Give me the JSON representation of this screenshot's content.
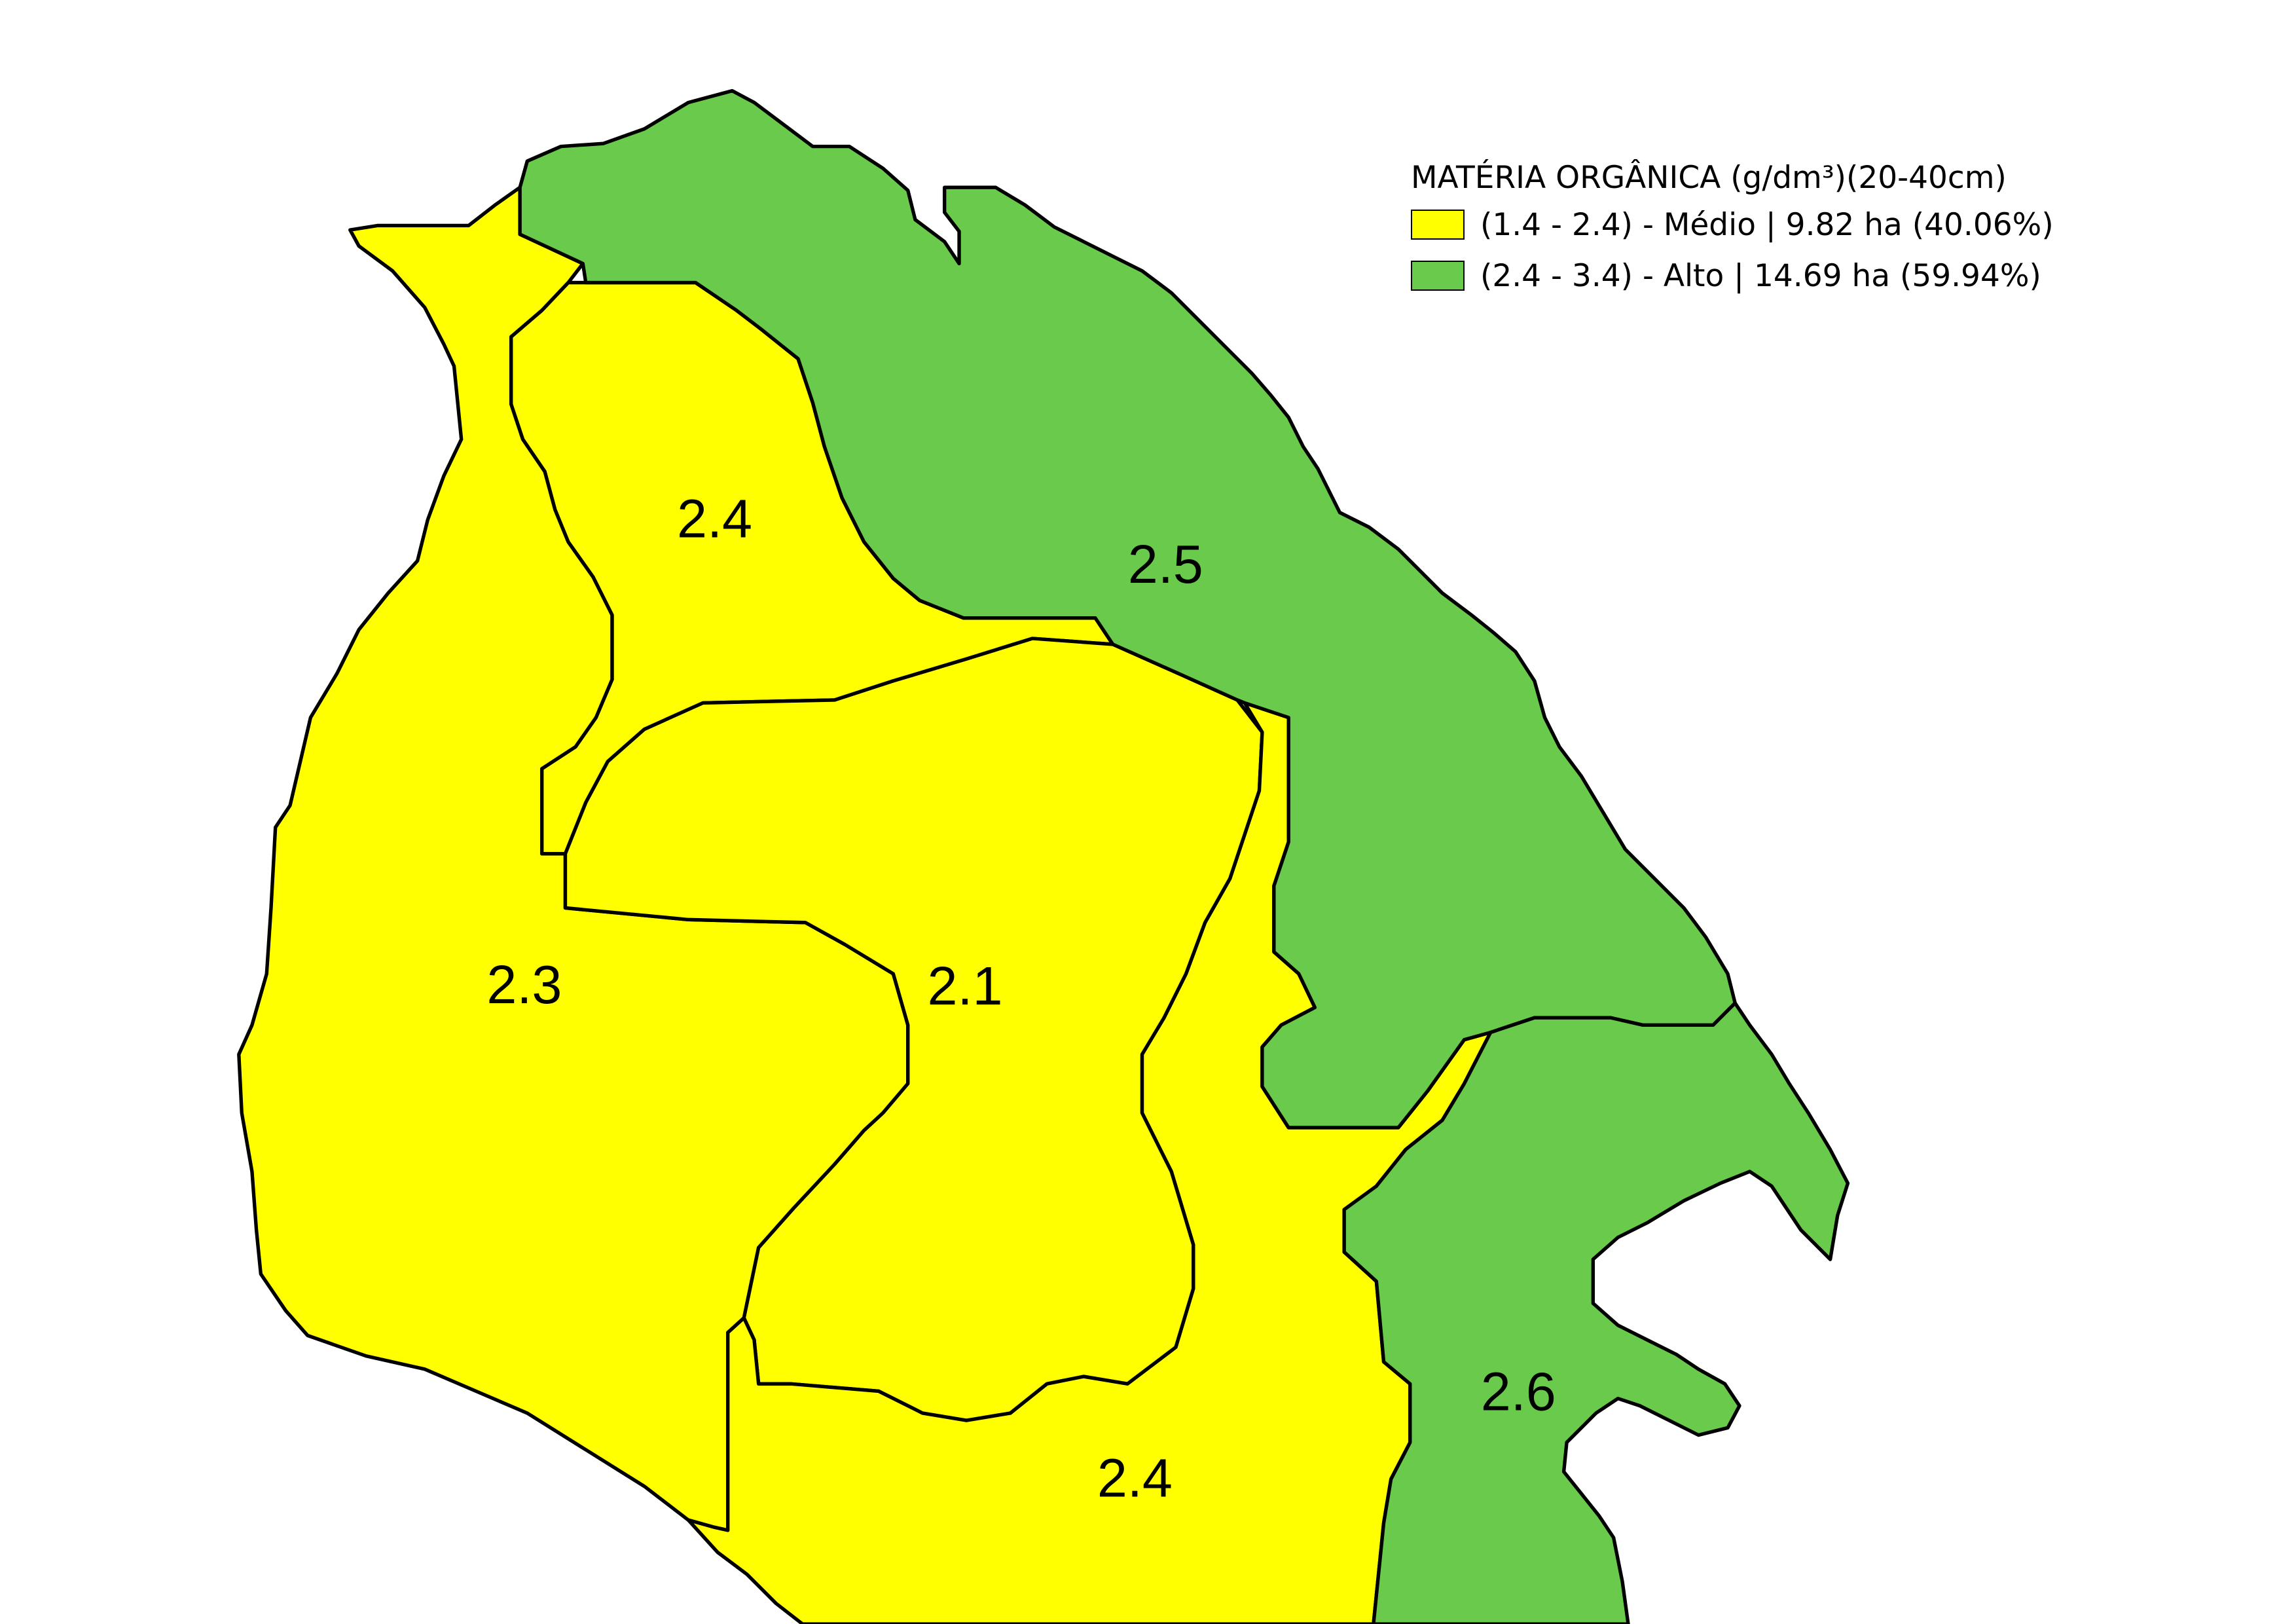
{
  "colors": {
    "medio": "#ffff00",
    "alto": "#6aca4b",
    "outline": "#000000",
    "background": "#ffffff"
  },
  "legend": {
    "title": "MATÉRIA ORGÂNICA (g/dm³)(20-40cm)",
    "items": [
      {
        "label": "(1.4 - 2.4) - Médio | 9.82 ha (40.06%)",
        "color": "#ffff00"
      },
      {
        "label": "(2.4 - 3.4) - Alto | 14.69 ha (59.94%)",
        "color": "#6aca4b"
      }
    ]
  },
  "zones": [
    {
      "id": "zone-2-3",
      "label": "2.3",
      "class": "Médio"
    },
    {
      "id": "zone-2-4-north",
      "label": "2.4",
      "class": "Médio"
    },
    {
      "id": "zone-2-1",
      "label": "2.1",
      "class": "Médio"
    },
    {
      "id": "zone-2-4-south",
      "label": "2.4",
      "class": "Médio"
    },
    {
      "id": "zone-2-5",
      "label": "2.5",
      "class": "Alto"
    },
    {
      "id": "zone-2-6",
      "label": "2.6",
      "class": "Alto"
    }
  ]
}
